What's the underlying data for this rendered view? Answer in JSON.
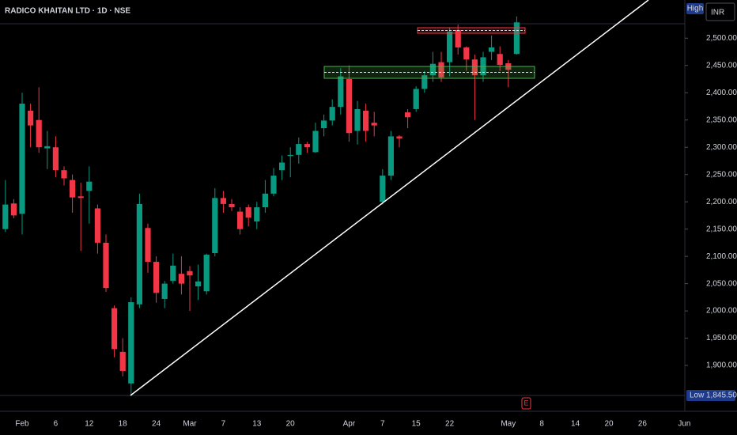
{
  "chart_data": {
    "type": "candlestick",
    "title": "RADICO KHAITAN LTD · 1D · NSE",
    "currency": "INR",
    "high_marker_text": "High",
    "low_marker": {
      "text": "Low",
      "price": {
        "value": 1845.5,
        "label": "1,845.50"
      }
    },
    "earnings_marker": "E",
    "up_color": "#089981",
    "down_color": "#f23645",
    "categories": [
      null,
      null,
      "Feb",
      null,
      null,
      null,
      "6",
      null,
      null,
      null,
      "12",
      null,
      null,
      null,
      "18",
      null,
      null,
      null,
      "24",
      null,
      null,
      null,
      "Mar",
      null,
      null,
      null,
      "7",
      null,
      null,
      null,
      "13",
      null,
      null,
      null,
      "20",
      null,
      null,
      null,
      null,
      null,
      null,
      "Apr",
      null,
      null,
      null,
      "7",
      null,
      null,
      null,
      "15",
      null,
      null,
      null,
      "22",
      null,
      null,
      null,
      null,
      null,
      null,
      "May",
      null,
      null,
      null,
      "8",
      null,
      null,
      null,
      "14",
      null,
      null,
      null,
      "20",
      null,
      null,
      null,
      "26",
      null,
      null,
      null,
      null,
      "Jun"
    ],
    "open": [
      2150,
      2197,
      2178,
      2367,
      2350,
      2298,
      2300,
      2258,
      2240,
      2210,
      2220,
      2188,
      2125,
      2005,
      1925,
      1867,
      2012,
      2152,
      2090,
      2022,
      2055,
      2068,
      2073,
      2045,
      2036,
      2106,
      2207,
      2196,
      2182,
      2190,
      2164,
      2190,
      2215,
      2258,
      2284,
      2286,
      2306,
      2291,
      2335,
      2349,
      2374,
      2425,
      2330,
      2367,
      2345,
      2200,
      2248,
      2320,
      2364,
      2370,
      2407,
      2432,
      2456,
      2456,
      2515,
      2483,
      2461,
      2432,
      2475,
      2471,
      2454,
      2471,
      null,
      null,
      null,
      null,
      null,
      null,
      null,
      null,
      null,
      null,
      null,
      null,
      null,
      null,
      null,
      null,
      null,
      null,
      null,
      null
    ],
    "high": [
      2240,
      2205,
      2400,
      2380,
      2410,
      2330,
      2320,
      2265,
      2250,
      2235,
      2265,
      2195,
      2140,
      2010,
      1950,
      2025,
      2215,
      2160,
      2100,
      2055,
      2105,
      2100,
      2082,
      2085,
      2105,
      2225,
      2220,
      2205,
      2190,
      2195,
      2200,
      2240,
      2262,
      2285,
      2300,
      2318,
      2310,
      2345,
      2360,
      2388,
      2445,
      2450,
      2385,
      2380,
      2365,
      2260,
      2330,
      2322,
      2370,
      2412,
      2440,
      2475,
      2475,
      2520,
      2525,
      2485,
      2470,
      2475,
      2505,
      2485,
      2460,
      2540,
      null,
      null,
      null,
      null,
      null,
      null,
      null,
      null,
      null,
      null,
      null,
      null,
      null,
      null,
      null,
      null,
      null,
      null,
      null,
      null
    ],
    "low": [
      2145,
      2170,
      2140,
      2300,
      2290,
      2260,
      2245,
      2230,
      2180,
      2110,
      2160,
      2105,
      2035,
      1915,
      1880,
      1845.5,
      2005,
      2070,
      2015,
      2005,
      2050,
      2030,
      2000,
      2020,
      2030,
      2100,
      2180,
      2183,
      2140,
      2155,
      2150,
      2180,
      2210,
      2240,
      2245,
      2270,
      2290,
      2290,
      2320,
      2340,
      2360,
      2310,
      2305,
      2310,
      2320,
      2195,
      2240,
      2300,
      2335,
      2365,
      2400,
      2420,
      2420,
      2430,
      2470,
      2440,
      2350,
      2420,
      2460,
      2440,
      2410,
      2470,
      null,
      null,
      null,
      null,
      null,
      null,
      null,
      null,
      null,
      null,
      null,
      null,
      null,
      null,
      null,
      null,
      null,
      null,
      null,
      null
    ],
    "close": [
      2195,
      2175,
      2380,
      2340,
      2300,
      2302,
      2258,
      2243,
      2208,
      2207,
      2237,
      2125,
      2042,
      1930,
      1890,
      2016,
      2196,
      2090,
      2033,
      2050,
      2083,
      2050,
      2065,
      2054,
      2103,
      2207,
      2196,
      2190,
      2150,
      2171,
      2190,
      2215,
      2248,
      2272,
      2286,
      2306,
      2300,
      2330,
      2349,
      2374,
      2430,
      2326,
      2370,
      2330,
      2340,
      2248,
      2320,
      2316,
      2355,
      2407,
      2432,
      2453,
      2428,
      2512,
      2483,
      2461,
      2432,
      2465,
      2483,
      2451,
      2442,
      2529,
      null,
      null,
      null,
      null,
      null,
      null,
      null,
      null,
      null,
      null,
      null,
      null,
      null,
      null,
      null,
      null,
      null,
      null,
      null,
      null
    ],
    "ylim": [
      1816,
      2570
    ],
    "yticks": [
      {
        "value": 1900,
        "label": "1,900.00"
      },
      {
        "value": 1950,
        "label": "1,950.00"
      },
      {
        "value": 2000,
        "label": "2,000.00"
      },
      {
        "value": 2050,
        "label": "2,050.00"
      },
      {
        "value": 2100,
        "label": "2,100.00"
      },
      {
        "value": 2150,
        "label": "2,150.00"
      },
      {
        "value": 2200,
        "label": "2,200.00"
      },
      {
        "value": 2250,
        "label": "2,250.00"
      },
      {
        "value": 2300,
        "label": "2,300.00"
      },
      {
        "value": 2350,
        "label": "2,350.00"
      },
      {
        "value": 2400,
        "label": "2,400.00"
      },
      {
        "value": 2450,
        "label": "2,450.00"
      },
      {
        "value": 2500,
        "label": "2,500.00"
      }
    ]
  }
}
